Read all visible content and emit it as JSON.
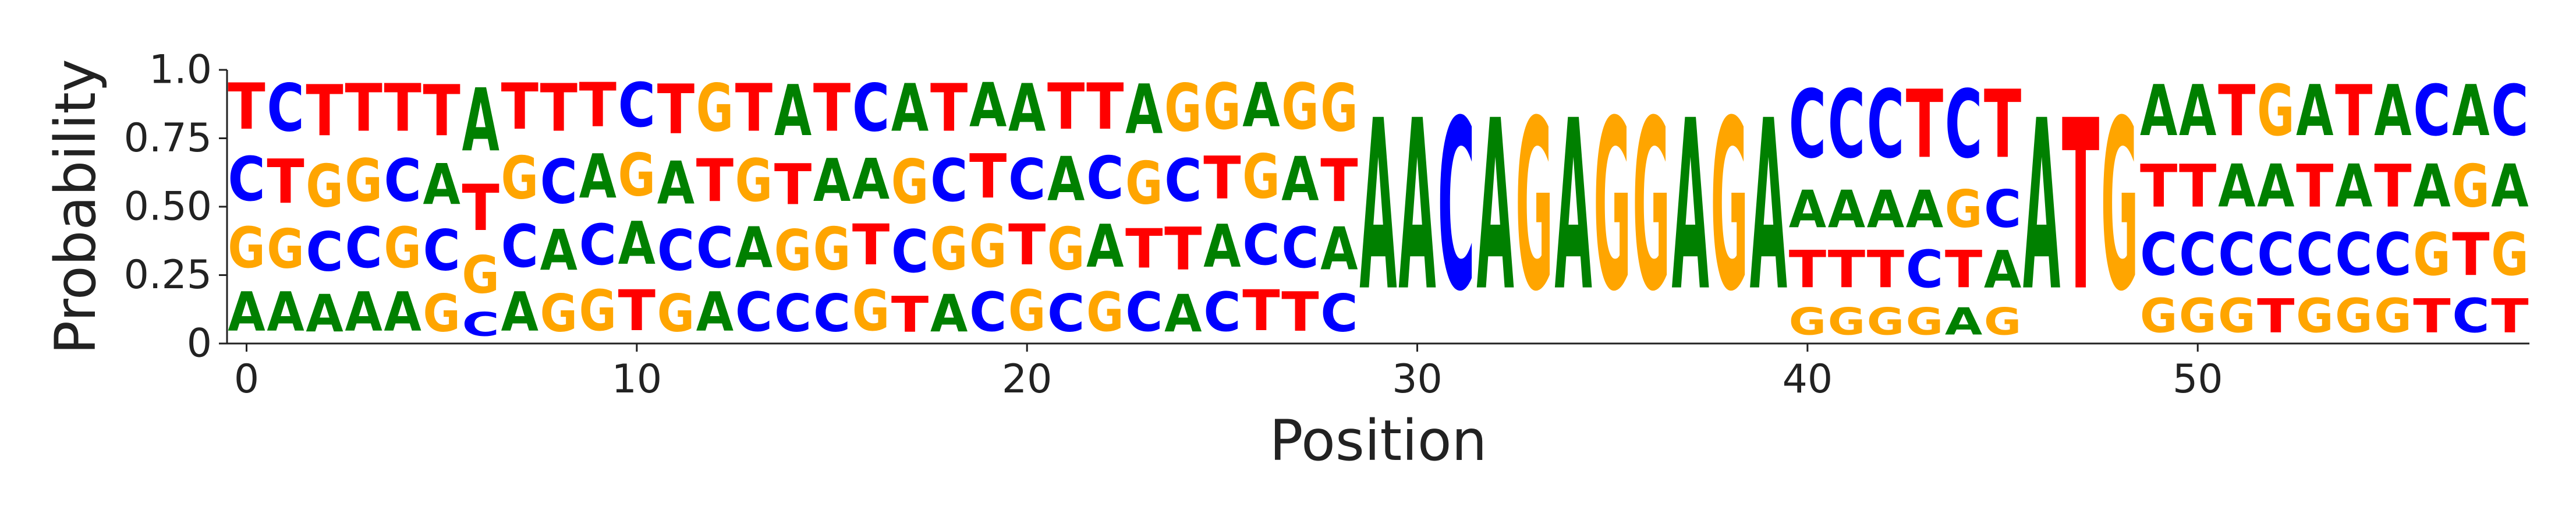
{
  "chart_data": {
    "type": "sequence-logo",
    "ylabel": "Probability",
    "xlabel": "Position",
    "ylim": [
      0,
      1
    ],
    "xlim": [
      -0.5,
      58.5
    ],
    "yticks": [
      0,
      0.25,
      0.5,
      0.75,
      1
    ],
    "ytick_labels": [
      "0",
      "0.25",
      "0.50",
      "0.75",
      "1.0"
    ],
    "xticks": [
      0,
      10,
      20,
      30,
      40,
      50
    ],
    "xtick_labels": [
      "0",
      "10",
      "20",
      "30",
      "40",
      "50"
    ],
    "colors": {
      "A": "#008000",
      "C": "#0000ff",
      "G": "#ffa500",
      "T": "#ff0000"
    },
    "positions": [
      {
        "pos": 0,
        "probs": {
          "T": 0.27,
          "G": 0.24,
          "C": 0.26,
          "A": 0.23
        }
      },
      {
        "pos": 1,
        "probs": {
          "C": 0.28,
          "A": 0.23,
          "T": 0.26,
          "G": 0.23
        }
      },
      {
        "pos": 2,
        "probs": {
          "T": 0.3,
          "G": 0.25,
          "A": 0.22,
          "C": 0.23
        }
      },
      {
        "pos": 3,
        "probs": {
          "T": 0.28,
          "G": 0.25,
          "A": 0.23,
          "C": 0.24
        }
      },
      {
        "pos": 4,
        "probs": {
          "T": 0.28,
          "C": 0.25,
          "G": 0.24,
          "A": 0.23
        }
      },
      {
        "pos": 5,
        "probs": {
          "T": 0.3,
          "C": 0.24,
          "G": 0.22,
          "A": 0.24
        }
      },
      {
        "pos": 6,
        "probs": {
          "A": 0.37,
          "T": 0.27,
          "G": 0.22,
          "C": 0.14
        }
      },
      {
        "pos": 7,
        "probs": {
          "T": 0.27,
          "C": 0.25,
          "G": 0.25,
          "A": 0.23
        }
      },
      {
        "pos": 8,
        "probs": {
          "T": 0.28,
          "C": 0.26,
          "A": 0.24,
          "G": 0.22
        }
      },
      {
        "pos": 9,
        "probs": {
          "A": 0.26,
          "T": 0.26,
          "G": 0.24,
          "C": 0.24
        }
      },
      {
        "pos": 10,
        "probs": {
          "C": 0.26,
          "A": 0.25,
          "T": 0.24,
          "G": 0.25
        }
      },
      {
        "pos": 11,
        "probs": {
          "T": 0.29,
          "A": 0.25,
          "C": 0.24,
          "G": 0.22
        }
      },
      {
        "pos": 12,
        "probs": {
          "G": 0.28,
          "T": 0.25,
          "C": 0.24,
          "A": 0.23
        }
      },
      {
        "pos": 13,
        "probs": {
          "T": 0.28,
          "G": 0.25,
          "A": 0.24,
          "C": 0.23
        }
      },
      {
        "pos": 14,
        "probs": {
          "A": 0.3,
          "G": 0.24,
          "T": 0.24,
          "C": 0.22
        }
      },
      {
        "pos": 15,
        "probs": {
          "T": 0.28,
          "G": 0.25,
          "A": 0.25,
          "C": 0.22
        }
      },
      {
        "pos": 16,
        "probs": {
          "C": 0.28,
          "G": 0.24,
          "T": 0.24,
          "A": 0.24
        }
      },
      {
        "pos": 17,
        "probs": {
          "A": 0.28,
          "G": 0.26,
          "T": 0.21,
          "C": 0.25
        }
      },
      {
        "pos": 18,
        "probs": {
          "T": 0.28,
          "G": 0.25,
          "A": 0.22,
          "C": 0.25
        }
      },
      {
        "pos": 19,
        "probs": {
          "T": 0.26,
          "A": 0.26,
          "G": 0.25,
          "C": 0.23
        }
      },
      {
        "pos": 20,
        "probs": {
          "A": 0.28,
          "G": 0.24,
          "T": 0.24,
          "C": 0.24
        }
      },
      {
        "pos": 21,
        "probs": {
          "T": 0.27,
          "A": 0.26,
          "G": 0.25,
          "C": 0.22
        }
      },
      {
        "pos": 22,
        "probs": {
          "T": 0.27,
          "A": 0.25,
          "G": 0.23,
          "C": 0.25
        }
      },
      {
        "pos": 23,
        "probs": {
          "A": 0.29,
          "G": 0.25,
          "C": 0.23,
          "T": 0.23
        }
      },
      {
        "pos": 24,
        "probs": {
          "G": 0.28,
          "T": 0.25,
          "A": 0.22,
          "C": 0.25
        }
      },
      {
        "pos": 25,
        "probs": {
          "G": 0.27,
          "A": 0.25,
          "T": 0.25,
          "C": 0.23
        }
      },
      {
        "pos": 26,
        "probs": {
          "G": 0.26,
          "A": 0.26,
          "T": 0.24,
          "C": 0.24
        }
      },
      {
        "pos": 27,
        "probs": {
          "G": 0.27,
          "A": 0.26,
          "T": 0.23,
          "C": 0.24
        }
      },
      {
        "pos": 28,
        "probs": {
          "G": 0.28,
          "A": 0.25,
          "T": 0.25,
          "C": 0.22
        }
      },
      {
        "pos": 29,
        "probs": {
          "A": 1.0
        }
      },
      {
        "pos": 30,
        "probs": {
          "A": 1.0
        }
      },
      {
        "pos": 31,
        "probs": {
          "C": 1.0
        }
      },
      {
        "pos": 32,
        "probs": {
          "A": 1.0
        }
      },
      {
        "pos": 33,
        "probs": {
          "G": 1.0
        }
      },
      {
        "pos": 34,
        "probs": {
          "A": 1.0
        }
      },
      {
        "pos": 35,
        "probs": {
          "G": 1.0
        }
      },
      {
        "pos": 36,
        "probs": {
          "G": 1.0
        }
      },
      {
        "pos": 37,
        "probs": {
          "A": 1.0
        }
      },
      {
        "pos": 38,
        "probs": {
          "G": 1.0
        }
      },
      {
        "pos": 39,
        "probs": {
          "A": 1.0
        }
      },
      {
        "pos": 40,
        "probs": {
          "C": 0.4,
          "T": 0.22,
          "A": 0.22,
          "G": 0.16
        }
      },
      {
        "pos": 41,
        "probs": {
          "C": 0.4,
          "T": 0.22,
          "A": 0.22,
          "G": 0.16
        }
      },
      {
        "pos": 42,
        "probs": {
          "C": 0.4,
          "T": 0.22,
          "A": 0.22,
          "G": 0.16
        }
      },
      {
        "pos": 43,
        "probs": {
          "T": 0.4,
          "C": 0.22,
          "A": 0.22,
          "G": 0.16
        }
      },
      {
        "pos": 44,
        "probs": {
          "C": 0.4,
          "T": 0.22,
          "G": 0.22,
          "A": 0.16
        }
      },
      {
        "pos": 45,
        "probs": {
          "T": 0.4,
          "A": 0.22,
          "C": 0.22,
          "G": 0.16
        }
      },
      {
        "pos": 46,
        "probs": {
          "A": 1.0
        }
      },
      {
        "pos": 47,
        "probs": {
          "T": 1.0
        }
      },
      {
        "pos": 48,
        "probs": {
          "G": 1.0
        }
      },
      {
        "pos": 49,
        "probs": {
          "A": 0.3,
          "C": 0.25,
          "T": 0.25,
          "G": 0.2
        }
      },
      {
        "pos": 50,
        "probs": {
          "A": 0.3,
          "C": 0.25,
          "T": 0.25,
          "G": 0.2
        }
      },
      {
        "pos": 51,
        "probs": {
          "T": 0.3,
          "C": 0.25,
          "A": 0.25,
          "G": 0.2
        }
      },
      {
        "pos": 52,
        "probs": {
          "G": 0.3,
          "C": 0.25,
          "A": 0.25,
          "T": 0.2
        }
      },
      {
        "pos": 53,
        "probs": {
          "A": 0.3,
          "C": 0.25,
          "T": 0.25,
          "G": 0.2
        }
      },
      {
        "pos": 54,
        "probs": {
          "T": 0.3,
          "C": 0.25,
          "A": 0.25,
          "G": 0.2
        }
      },
      {
        "pos": 55,
        "probs": {
          "A": 0.3,
          "C": 0.25,
          "T": 0.25,
          "G": 0.2
        }
      },
      {
        "pos": 56,
        "probs": {
          "C": 0.3,
          "G": 0.25,
          "A": 0.25,
          "T": 0.2
        }
      },
      {
        "pos": 57,
        "probs": {
          "A": 0.3,
          "T": 0.25,
          "G": 0.25,
          "C": 0.2
        }
      },
      {
        "pos": 58,
        "probs": {
          "C": 0.3,
          "G": 0.25,
          "A": 0.25,
          "T": 0.2
        }
      }
    ]
  }
}
